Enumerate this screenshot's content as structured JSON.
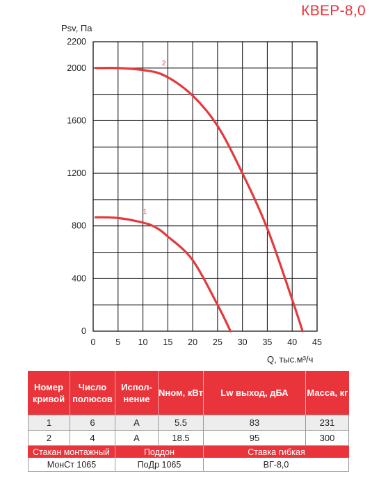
{
  "model": "КВЕР-8,0",
  "chart_data": {
    "type": "line",
    "title": "КВЕР-8,0",
    "xlabel": "Q, тыс.м³/ч",
    "ylabel": "Psv, Па",
    "xlim": [
      0,
      45
    ],
    "ylim": [
      0,
      2200
    ],
    "x_ticks": [
      "0",
      "5",
      "10",
      "15",
      "20",
      "25",
      "30",
      "35",
      "40",
      "45"
    ],
    "y_ticks": [
      "0",
      "400",
      "800",
      "1200",
      "1600",
      "2000",
      "2200"
    ],
    "grid": true,
    "series": [
      {
        "name": "1",
        "x": [
          0.5,
          5,
          10,
          12.5,
          15,
          20,
          25,
          27.6
        ],
        "y": [
          865,
          860,
          825,
          790,
          720,
          540,
          200,
          0
        ]
      },
      {
        "name": "2",
        "x": [
          0.5,
          5,
          10,
          14.5,
          20,
          25,
          30,
          35,
          40,
          42.1
        ],
        "y": [
          2000,
          2000,
          1985,
          1940,
          1790,
          1560,
          1200,
          780,
          240,
          0
        ]
      }
    ]
  },
  "table": {
    "headers": [
      "Номер кривой",
      "Число полюсов",
      "Испол-нение",
      "Nном, кВт",
      "Lw выход, дБА",
      "Масса, кг"
    ],
    "rows": [
      [
        "1",
        "6",
        "A",
        "5.5",
        "83",
        "231"
      ],
      [
        "2",
        "4",
        "A",
        "18.5",
        "95",
        "300"
      ]
    ]
  },
  "accessories": {
    "headers": [
      "Стакан монтажный",
      "Поддон",
      "Ставка гибкая"
    ],
    "values": [
      "МонСт 1065",
      "ПоДр 1065",
      "ВГ-8,0"
    ]
  }
}
